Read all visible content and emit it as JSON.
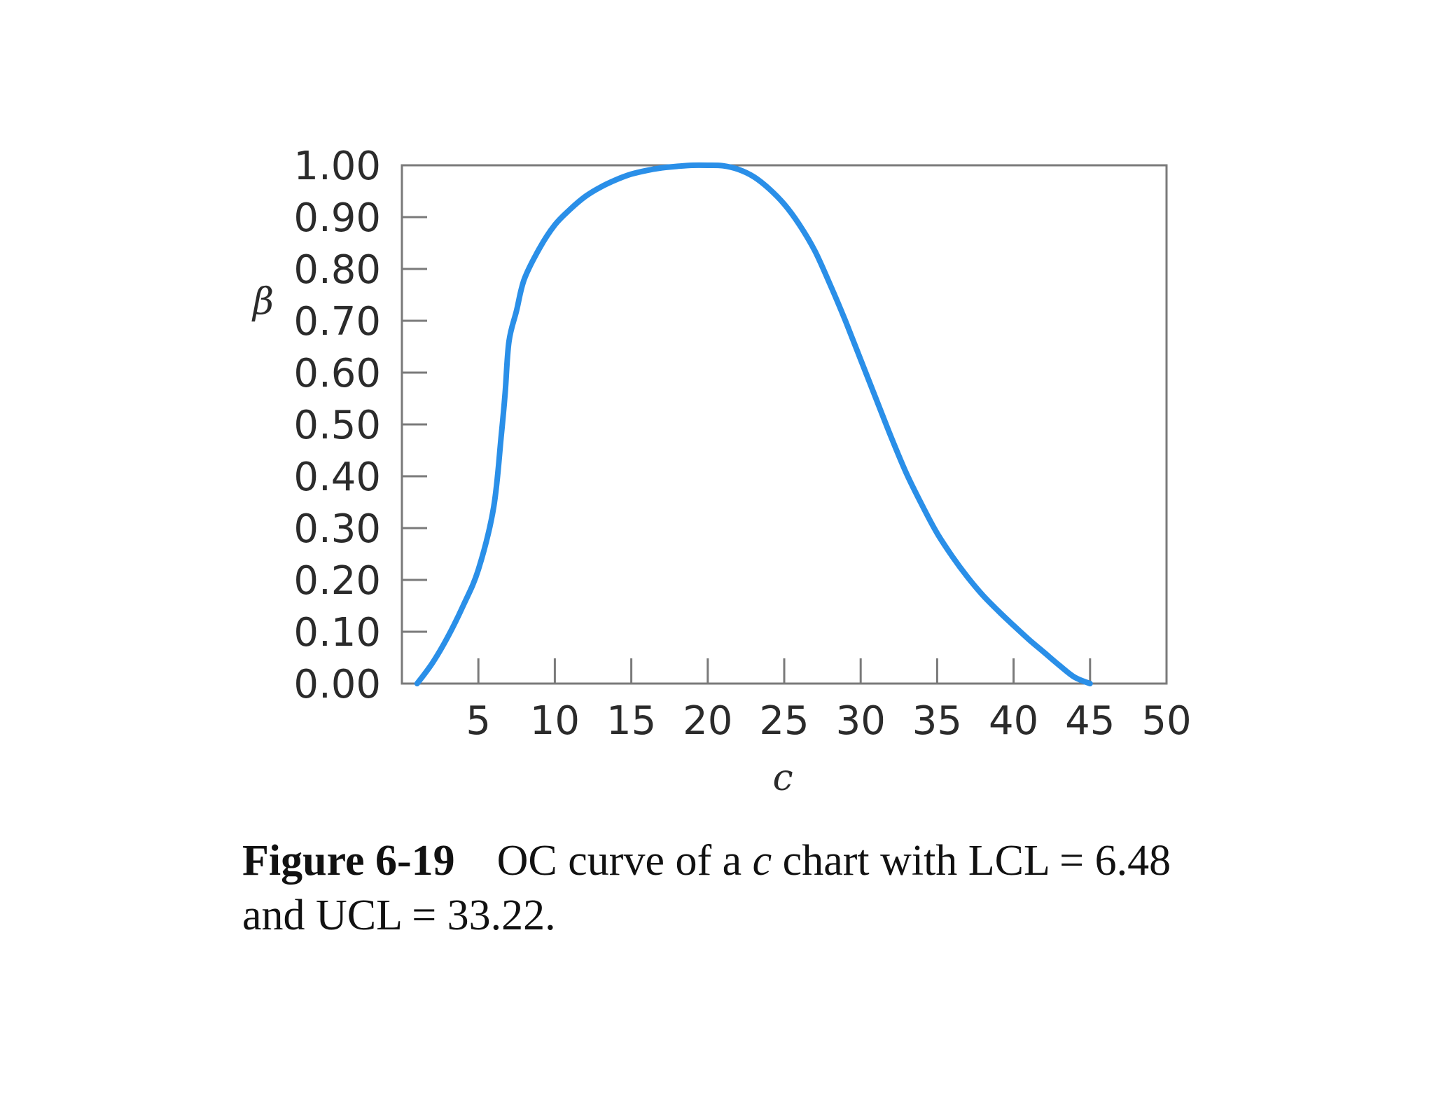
{
  "chart_data": {
    "type": "line",
    "xlabel": "c",
    "ylabel": "β",
    "xlim": [
      0,
      50
    ],
    "ylim": [
      0,
      1
    ],
    "x_ticks": [
      5,
      10,
      15,
      20,
      25,
      30,
      35,
      40,
      45,
      50
    ],
    "x_tick_labels": [
      "5",
      "10",
      "15",
      "20",
      "25",
      "30",
      "35",
      "40",
      "45",
      "50"
    ],
    "y_ticks": [
      0,
      0.1,
      0.2,
      0.3,
      0.4,
      0.5,
      0.6,
      0.7,
      0.8,
      0.9,
      1.0
    ],
    "y_tick_labels": [
      "0.00",
      "0.10",
      "0.20",
      "0.30",
      "0.40",
      "0.50",
      "0.60",
      "0.70",
      "0.80",
      "0.90",
      "1.00"
    ],
    "grid": false,
    "series": [
      {
        "color": "#2a8fe8",
        "x": [
          1,
          2,
          3,
          4,
          5,
          6,
          6.5,
          6.75,
          7,
          7.5,
          8,
          9,
          10,
          11,
          12,
          13,
          14,
          15,
          16,
          17,
          18,
          19,
          20,
          21,
          22,
          23,
          24,
          25,
          26,
          27,
          28,
          29,
          30,
          31,
          32,
          33,
          34,
          35,
          36,
          37,
          38,
          39,
          40,
          41,
          42,
          43,
          44,
          45
        ],
        "y": [
          0.0,
          0.04,
          0.09,
          0.15,
          0.22,
          0.34,
          0.48,
          0.56,
          0.66,
          0.72,
          0.78,
          0.84,
          0.885,
          0.915,
          0.94,
          0.958,
          0.972,
          0.983,
          0.99,
          0.995,
          0.998,
          1.0,
          1.0,
          0.999,
          0.992,
          0.978,
          0.955,
          0.925,
          0.885,
          0.835,
          0.77,
          0.7,
          0.625,
          0.55,
          0.475,
          0.405,
          0.345,
          0.29,
          0.245,
          0.205,
          0.17,
          0.14,
          0.112,
          0.085,
          0.06,
          0.035,
          0.012,
          0.0
        ]
      }
    ]
  },
  "caption": {
    "label": "Figure 6-19",
    "text_before_var": "OC curve of a ",
    "var": "c",
    "text_after_var": " chart with LCL = 6.48 and UCL = 33.22."
  }
}
